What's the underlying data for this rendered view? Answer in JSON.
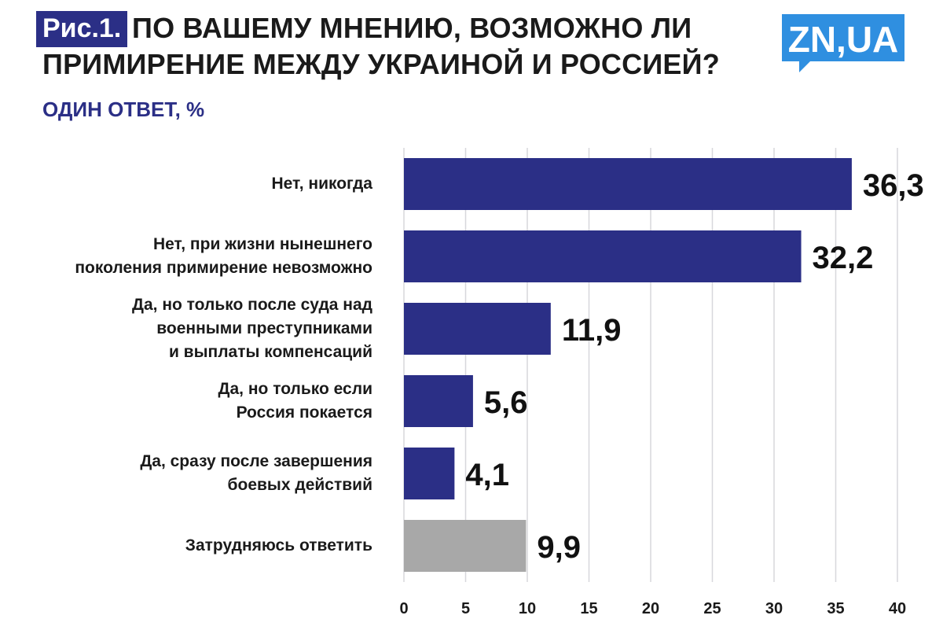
{
  "header": {
    "figure_label": "Рис.1.",
    "title_line1": "ПО ВАШЕМУ МНЕНИЮ, ВОЗМОЖНО ЛИ",
    "title_line2": "ПРИМИРЕНИЕ МЕЖДУ УКРАИНОЙ И РОССИЕЙ?",
    "subtitle": "ОДИН ОТВЕТ, %",
    "logo_text": "ZN,UA"
  },
  "colors": {
    "primary_bar": "#2b2f86",
    "neutral_bar": "#a8a8a8",
    "logo": "#2f8fe0",
    "grid": "#d7d7dc"
  },
  "chart_data": {
    "type": "bar",
    "orientation": "horizontal",
    "categories": [
      [
        "Нет, никогда"
      ],
      [
        "Нет, при жизни нынешнего",
        "поколения примирение невозможно"
      ],
      [
        "Да, но только после суда над",
        "военными преступниками",
        "и выплаты компенсаций"
      ],
      [
        "Да, но только если",
        "Россия покается"
      ],
      [
        "Да, сразу после завершения",
        "боевых действий"
      ],
      [
        "Затрудняюсь ответить"
      ]
    ],
    "values": [
      36.3,
      32.2,
      11.9,
      5.6,
      4.1,
      9.9
    ],
    "value_labels": [
      "36,3",
      "32,2",
      "11,9",
      "5,6",
      "4,1",
      "9,9"
    ],
    "bar_colors": [
      "#2b2f86",
      "#2b2f86",
      "#2b2f86",
      "#2b2f86",
      "#2b2f86",
      "#a8a8a8"
    ],
    "xlim": [
      0,
      40
    ],
    "xticks": [
      "0",
      "5",
      "10",
      "15",
      "20",
      "25",
      "30",
      "35",
      "40"
    ],
    "grid": true,
    "title": "ПО ВАШЕМУ МНЕНИЮ, ВОЗМОЖНО ЛИ ПРИМИРЕНИЕ МЕЖДУ УКРАИНОЙ И РОССИЕЙ?",
    "subtitle": "ОДИН ОТВЕТ, %"
  }
}
